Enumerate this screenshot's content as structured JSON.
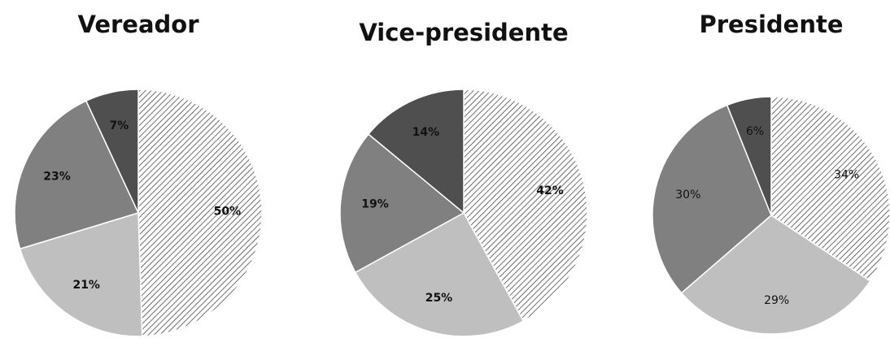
{
  "chart_data": [
    {
      "type": "pie",
      "title": "Vereador",
      "categories": [
        null,
        null,
        null,
        null
      ],
      "values": [
        50,
        21,
        23,
        7
      ],
      "value_labels": [
        "50%",
        "21%",
        "23%",
        "7%"
      ],
      "colors": [
        "#ffffff",
        "#bfbfbf",
        "#808080",
        "#4f4f4f"
      ],
      "hatched": [
        true,
        false,
        false,
        false
      ]
    },
    {
      "type": "pie",
      "title": "Vice-presidente",
      "categories": [
        null,
        null,
        null,
        null
      ],
      "values": [
        42,
        25,
        19,
        14
      ],
      "value_labels": [
        "42%",
        "25%",
        "19%",
        "14%"
      ],
      "colors": [
        "#ffffff",
        "#bfbfbf",
        "#808080",
        "#4f4f4f"
      ],
      "hatched": [
        true,
        false,
        false,
        false
      ]
    },
    {
      "type": "pie",
      "title": "Presidente",
      "categories": [
        null,
        null,
        null,
        null
      ],
      "values": [
        34,
        29,
        30,
        6
      ],
      "value_labels": [
        "34%",
        "29%",
        "30%",
        "6%"
      ],
      "colors": [
        "#ffffff",
        "#bfbfbf",
        "#808080",
        "#4f4f4f"
      ],
      "hatched": [
        true,
        false,
        false,
        false
      ]
    }
  ]
}
